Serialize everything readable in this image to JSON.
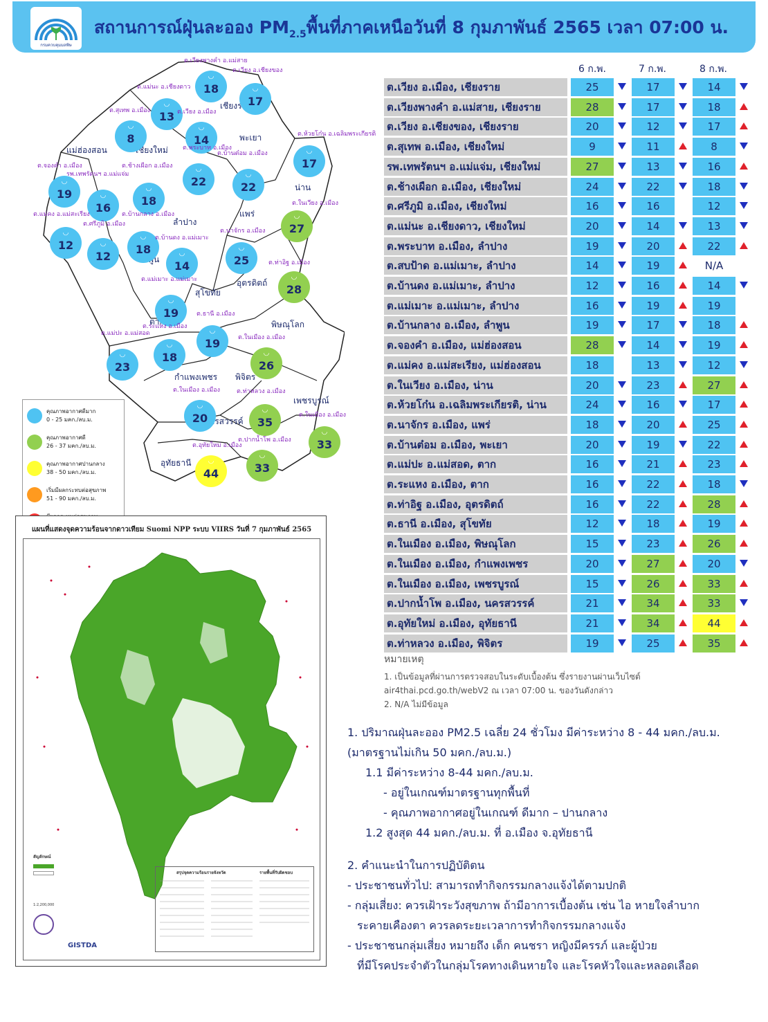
{
  "header": {
    "title_pre": "สถานการณ์ฝุ่นละออง PM",
    "title_sub": "2.5",
    "title_post": "พื้นที่ภาคเหนือวันที่ 8 กุมภาพันธ์ 2565 เวลา 07:00 น.",
    "logo_text": "กรมควบคุมมลพิษ"
  },
  "legend": [
    {
      "t1": "คุณภาพอากาศดีมาก",
      "t2": "0 - 25 มคก./ลบ.ม.",
      "color": "#4fc3f2"
    },
    {
      "t1": "คุณภาพอากาศดี",
      "t2": "26 - 37 มคก./ลบ.ม.",
      "color": "#92d050"
    },
    {
      "t1": "คุณภาพอากาศปานกลาง",
      "t2": "38 - 50 มคก./ลบ.ม.",
      "color": "#ffff33"
    },
    {
      "t1": "เริ่มมีผลกระทบต่อสุขภาพ",
      "t2": "51 - 90 มคก./ลบ.ม.",
      "color": "#ff9a1f"
    },
    {
      "t1": "มีผลกระทบต่อสุขภาพ",
      "t2": "มากกว่า 90 มคก./ลบ.ม.",
      "color": "#ff3333"
    }
  ],
  "provinces": [
    {
      "name": "เชียงราย"
    },
    {
      "name": "แม่ฮ่องสอน"
    },
    {
      "name": "เชียงใหม่"
    },
    {
      "name": "พะเยา"
    },
    {
      "name": "น่าน"
    },
    {
      "name": "ลำปาง"
    },
    {
      "name": "แพร่"
    },
    {
      "name": "ลำพูน"
    },
    {
      "name": "อุตรดิตถ์"
    },
    {
      "name": "สุโขทัย"
    },
    {
      "name": "ตาก"
    },
    {
      "name": "พิษณุโลก"
    },
    {
      "name": "กำแพงเพชร"
    },
    {
      "name": "พิจิตร"
    },
    {
      "name": "เพชรบูรณ์"
    },
    {
      "name": "นครสวรรค์"
    },
    {
      "name": "อุทัยธานี"
    }
  ],
  "stations": [
    {
      "label": "ต.เวียงพางคำ อ.แม่สาย",
      "value": "18",
      "color": "#4fc3f2"
    },
    {
      "label": "ต.เวียง อ.เชียงของ",
      "value": "17",
      "color": "#4fc3f2"
    },
    {
      "label": "ต.แม่นะ อ.เชียงดาว",
      "value": "13",
      "color": "#4fc3f2"
    },
    {
      "label": "ต.สุเทพ อ.เมือง",
      "value": "8",
      "color": "#4fc3f2"
    },
    {
      "label": "ต.เวียง อ.เมือง",
      "value": "14",
      "color": "#4fc3f2"
    },
    {
      "label": "ต.ห้วยโก๋น อ.เฉลิมพระเกียรติ",
      "value": "17",
      "color": "#4fc3f2"
    },
    {
      "label": "ต.จองคำ อ.เมือง",
      "value": "19",
      "color": "#4fc3f2"
    },
    {
      "label": "รพ.เทพรัตนฯ อ.แม่แจ่ม",
      "value": "16",
      "color": "#4fc3f2"
    },
    {
      "label": "ต.ช้างเผือก อ.เมือง",
      "value": "18",
      "color": "#4fc3f2"
    },
    {
      "label": "ต.พระบาท อ.เมือง",
      "value": "22",
      "color": "#4fc3f2"
    },
    {
      "label": "ต.บ้านต๋อม อ.เมือง",
      "value": "22",
      "color": "#4fc3f2"
    },
    {
      "label": "ต.ในเวียง อ.เมือง",
      "value": "27",
      "color": "#92d050"
    },
    {
      "label": "ต.แม่คง อ.แม่สะเรียง",
      "value": "12",
      "color": "#4fc3f2"
    },
    {
      "label": "ต.ศรีภูมิ อ.เมือง",
      "value": "12",
      "color": "#4fc3f2"
    },
    {
      "label": "ต.บ้านกลาง อ.เมือง",
      "value": "18",
      "color": "#4fc3f2"
    },
    {
      "label": "ต.บ้านดง อ.แม่เมาะ",
      "value": "14",
      "color": "#4fc3f2"
    },
    {
      "label": "ต.นาจักร อ.เมือง",
      "value": "25",
      "color": "#4fc3f2"
    },
    {
      "label": "ต.ท่าอิฐ อ.เมือง",
      "value": "28",
      "color": "#92d050"
    },
    {
      "label": "ต.แม่เมาะ อ.แม่เมาะ",
      "value": "19",
      "color": "#4fc3f2"
    },
    {
      "label": "ต.ธานี อ.เมือง",
      "value": "19",
      "color": "#4fc3f2"
    },
    {
      "label": "ต.แม่ปะ อ.แม่สอด",
      "value": "23",
      "color": "#4fc3f2"
    },
    {
      "label": "ต.ระแหง อ.เมือง",
      "value": "18",
      "color": "#4fc3f2"
    },
    {
      "label": "ต.ในเมือง อ.เมือง",
      "value": "26",
      "color": "#92d050"
    },
    {
      "label": "ต.ในเมือง อ.เมือง",
      "value": "20",
      "color": "#4fc3f2"
    },
    {
      "label": "ต.ท่าหลวง อ.เมือง",
      "value": "35",
      "color": "#92d050"
    },
    {
      "label": "ต.ในเมือง อ.เมือง",
      "value": "33",
      "color": "#92d050"
    },
    {
      "label": "ต.อุทัยใหม่ อ.เมือง",
      "value": "44",
      "color": "#ffff33"
    },
    {
      "label": "ต.ปากน้ำโพ อ.เมือง",
      "value": "33",
      "color": "#92d050"
    }
  ],
  "viirs": {
    "title": "แผนที่แสดงจุดความร้อนจากดาวเทียม Suomi NPP ระบบ VIIRS วันที่ 7 กุมภาพันธ์ 2565",
    "legend_title": "สัญลักษณ์",
    "summary_title": "สรุปจุดความร้อนรายจังหวัด",
    "area_title": "รายพื้นที่รับผิดชอบ",
    "scale": "1:2,200,000",
    "agency": "GISTDA"
  },
  "table": {
    "headers": [
      "6 ก.พ.",
      "7 ก.พ.",
      "8 ก.พ."
    ],
    "rows": [
      {
        "name": "ต.เวียง อ.เมือง, เชียงราย",
        "v": [
          "25",
          "17",
          "14"
        ],
        "c": [
          "b",
          "b",
          "b"
        ],
        "a": [
          "down",
          "down",
          "down"
        ]
      },
      {
        "name": "ต.เวียงพางคำ อ.แม่สาย, เชียงราย",
        "v": [
          "28",
          "17",
          "18"
        ],
        "c": [
          "g",
          "b",
          "b"
        ],
        "a": [
          "down",
          "down",
          "up"
        ]
      },
      {
        "name": "ต.เวียง อ.เชียงของ, เชียงราย",
        "v": [
          "20",
          "12",
          "17"
        ],
        "c": [
          "b",
          "b",
          "b"
        ],
        "a": [
          "down",
          "down",
          "up"
        ]
      },
      {
        "name": "ต.สุเทพ อ.เมือง, เชียงใหม่",
        "v": [
          "9",
          "11",
          "8"
        ],
        "c": [
          "b",
          "b",
          "b"
        ],
        "a": [
          "down",
          "up",
          "down"
        ]
      },
      {
        "name": "รพ.เทพรัตนฯ อ.แม่แจ่ม, เชียงใหม่",
        "v": [
          "27",
          "13",
          "16"
        ],
        "c": [
          "g",
          "b",
          "b"
        ],
        "a": [
          "down",
          "down",
          "up"
        ]
      },
      {
        "name": "ต.ช้างเผือก อ.เมือง, เชียงใหม่",
        "v": [
          "24",
          "22",
          "18"
        ],
        "c": [
          "b",
          "b",
          "b"
        ],
        "a": [
          "down",
          "down",
          "down"
        ]
      },
      {
        "name": "ต.ศรีภูมิ อ.เมือง, เชียงใหม่",
        "v": [
          "16",
          "16",
          "12"
        ],
        "c": [
          "b",
          "b",
          "b"
        ],
        "a": [
          "down",
          "",
          "down"
        ]
      },
      {
        "name": "ต.แม่นะ อ.เชียงดาว, เชียงใหม่",
        "v": [
          "20",
          "14",
          "13"
        ],
        "c": [
          "b",
          "b",
          "b"
        ],
        "a": [
          "down",
          "down",
          "down"
        ]
      },
      {
        "name": "ต.พระบาท อ.เมือง, ลำปาง",
        "v": [
          "19",
          "20",
          "22"
        ],
        "c": [
          "b",
          "b",
          "b"
        ],
        "a": [
          "down",
          "up",
          "up"
        ]
      },
      {
        "name": "ต.สบป้าด อ.แม่เมาะ, ลำปาง",
        "v": [
          "14",
          "19",
          "N/A"
        ],
        "c": [
          "b",
          "b",
          "w"
        ],
        "a": [
          "down",
          "up",
          ""
        ]
      },
      {
        "name": "ต.บ้านดง อ.แม่เมาะ, ลำปาง",
        "v": [
          "12",
          "16",
          "14"
        ],
        "c": [
          "b",
          "b",
          "b"
        ],
        "a": [
          "down",
          "up",
          "down"
        ]
      },
      {
        "name": "ต.แม่เมาะ อ.แม่เมาะ, ลำปาง",
        "v": [
          "16",
          "19",
          "19"
        ],
        "c": [
          "b",
          "b",
          "b"
        ],
        "a": [
          "down",
          "up",
          ""
        ]
      },
      {
        "name": "ต.บ้านกลาง อ.เมือง, ลำพูน",
        "v": [
          "19",
          "17",
          "18"
        ],
        "c": [
          "b",
          "b",
          "b"
        ],
        "a": [
          "down",
          "down",
          "up"
        ]
      },
      {
        "name": "ต.จองคำ อ.เมือง, แม่ฮ่องสอน",
        "v": [
          "28",
          "14",
          "19"
        ],
        "c": [
          "g",
          "b",
          "b"
        ],
        "a": [
          "down",
          "down",
          "up"
        ]
      },
      {
        "name": "ต.แม่คง อ.แม่สะเรียง, แม่ฮ่องสอน",
        "v": [
          "18",
          "13",
          "12"
        ],
        "c": [
          "b",
          "b",
          "b"
        ],
        "a": [
          "",
          "down",
          "down"
        ]
      },
      {
        "name": "ต.ในเวียง อ.เมือง, น่าน",
        "v": [
          "20",
          "23",
          "27"
        ],
        "c": [
          "b",
          "b",
          "g"
        ],
        "a": [
          "down",
          "up",
          "up"
        ]
      },
      {
        "name": "ต.ห้วยโก๋น อ.เฉลิมพระเกียรติ, น่าน",
        "v": [
          "24",
          "16",
          "17"
        ],
        "c": [
          "b",
          "b",
          "b"
        ],
        "a": [
          "down",
          "down",
          "up"
        ]
      },
      {
        "name": "ต.นาจักร อ.เมือง, แพร่",
        "v": [
          "18",
          "20",
          "25"
        ],
        "c": [
          "b",
          "b",
          "b"
        ],
        "a": [
          "down",
          "up",
          "up"
        ]
      },
      {
        "name": "ต.บ้านต๋อม อ.เมือง, พะเยา",
        "v": [
          "20",
          "19",
          "22"
        ],
        "c": [
          "b",
          "b",
          "b"
        ],
        "a": [
          "down",
          "down",
          "up"
        ]
      },
      {
        "name": "ต.แม่ปะ อ.แม่สอด, ตาก",
        "v": [
          "16",
          "21",
          "23"
        ],
        "c": [
          "b",
          "b",
          "b"
        ],
        "a": [
          "down",
          "up",
          "up"
        ]
      },
      {
        "name": "ต.ระแหง อ.เมือง, ตาก",
        "v": [
          "16",
          "22",
          "18"
        ],
        "c": [
          "b",
          "b",
          "b"
        ],
        "a": [
          "down",
          "up",
          "down"
        ]
      },
      {
        "name": "ต.ท่าอิฐ อ.เมือง, อุตรดิตถ์",
        "v": [
          "16",
          "22",
          "28"
        ],
        "c": [
          "b",
          "b",
          "g"
        ],
        "a": [
          "down",
          "up",
          "up"
        ]
      },
      {
        "name": "ต.ธานี อ.เมือง, สุโขทัย",
        "v": [
          "12",
          "18",
          "19"
        ],
        "c": [
          "b",
          "b",
          "b"
        ],
        "a": [
          "down",
          "up",
          "up"
        ]
      },
      {
        "name": "ต.ในเมือง อ.เมือง, พิษณุโลก",
        "v": [
          "15",
          "23",
          "26"
        ],
        "c": [
          "b",
          "b",
          "g"
        ],
        "a": [
          "down",
          "up",
          "up"
        ]
      },
      {
        "name": "ต.ในเมือง อ.เมือง, กำแพงเพชร",
        "v": [
          "20",
          "27",
          "20"
        ],
        "c": [
          "b",
          "g",
          "b"
        ],
        "a": [
          "down",
          "up",
          "down"
        ]
      },
      {
        "name": "ต.ในเมือง อ.เมือง, เพชรบูรณ์",
        "v": [
          "15",
          "26",
          "33"
        ],
        "c": [
          "b",
          "g",
          "g"
        ],
        "a": [
          "down",
          "up",
          "up"
        ]
      },
      {
        "name": "ต.ปากน้ำโพ อ.เมือง, นครสวรรค์",
        "v": [
          "21",
          "34",
          "33"
        ],
        "c": [
          "b",
          "g",
          "g"
        ],
        "a": [
          "down",
          "up",
          "down"
        ]
      },
      {
        "name": "ต.อุทัยใหม่ อ.เมือง, อุทัยธานี",
        "v": [
          "21",
          "34",
          "44"
        ],
        "c": [
          "b",
          "g",
          "y"
        ],
        "a": [
          "down",
          "up",
          "up"
        ]
      },
      {
        "name": "ต.ท่าหลวง อ.เมือง, พิจิตร",
        "v": [
          "19",
          "25",
          "35"
        ],
        "c": [
          "b",
          "b",
          "g"
        ],
        "a": [
          "down",
          "up",
          "up"
        ]
      }
    ],
    "cell_colors": {
      "b": "#4fc3f2",
      "g": "#92d050",
      "y": "#ffff33",
      "w": "#ffffff"
    }
  },
  "notes": {
    "heading": "หมายเหตุ",
    "n1": "1. เป็นข้อมูลที่ผ่านการตรวจสอบในระดับเบื้องต้น ซึ่งรายงานผ่านเว็บไซต์ air4thai.pcd.go.th/webV2 ณ เวลา 07:00 น. ของวันดังกล่าว",
    "n2": "2. N/A ไม่มีข้อมูล"
  },
  "summary": {
    "l1": "1. ปริมาณฝุ่นละออง PM2.5 เฉลี่ย 24 ชั่วโมง มีค่าระหว่าง 8 - 44 มคก./ลบ.ม.",
    "l2": "(มาตรฐานไม่เกิน 50 มคก./ลบ.ม.)",
    "l3": "1.1 มีค่าระหว่าง 8-44 มคก./ลบ.ม.",
    "l4": "- อยู่ในเกณฑ์มาตรฐานทุกพื้นที่",
    "l5": "- คุณภาพอากาศอยู่ในเกณฑ์ ดีมาก – ปานกลาง",
    "l6": "1.2 สูงสุด 44 มคก./ลบ.ม. ที่ อ.เมือง จ.อุทัยธานี",
    "l7": "2. คำแนะนำในการปฏิบัติตน",
    "l8": "- ประชาชนทั่วไป: สามารถทำกิจกรรมกลางแจ้งได้ตามปกติ",
    "l9": "- กลุ่มเสี่ยง: ควรเฝ้าระวังสุขภาพ ถ้ามีอาการเบื้องต้น เช่น ไอ หายใจลำบาก",
    "l10": "ระคายเคืองตา ควรลดระยะเวลาการทำกิจกรรมกลางแจ้ง",
    "l11": "- ประชาชนกลุ่มเสี่ยง หมายถึง เด็ก คนชรา หญิงมีครรภ์ และผู้ป่วย",
    "l12": "ที่มีโรคประจำตัวในกลุ่มโรคทางเดินหายใจ และโรคหัวใจและหลอดเลือด"
  }
}
